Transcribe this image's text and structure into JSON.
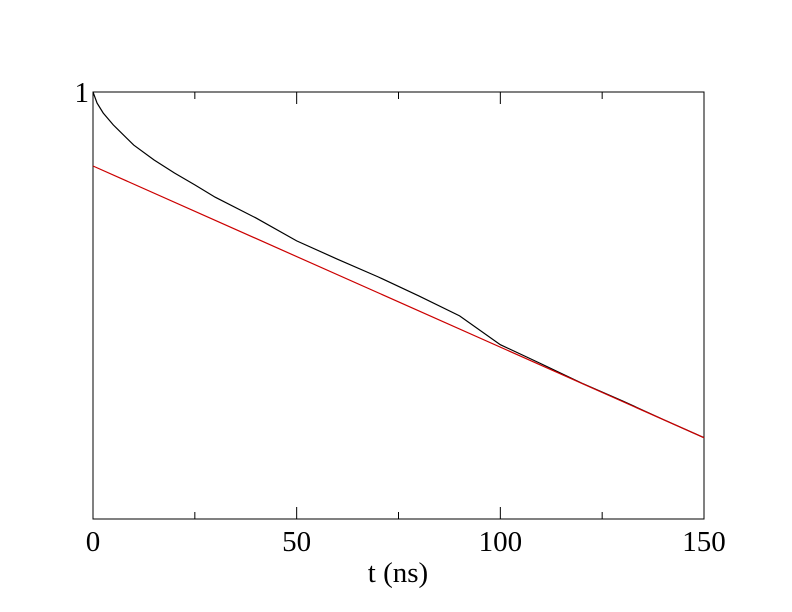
{
  "chart_data": {
    "type": "line",
    "x_label": "t (ns)",
    "xlim": [
      0,
      150
    ],
    "xticks": [
      0,
      50,
      100,
      150
    ],
    "xticks_minor": [
      25,
      75,
      125
    ],
    "ylim": [
      0.1,
      1
    ],
    "yticks": [
      1
    ],
    "y_log": true,
    "grid": false,
    "series": [
      {
        "color": "#000000",
        "x": [
          0,
          1,
          2.5,
          5,
          10,
          15,
          20,
          25,
          30,
          40,
          50,
          60,
          70,
          80,
          90,
          100,
          110,
          120,
          130,
          140,
          150
        ],
        "values": [
          1,
          0.942,
          0.893,
          0.837,
          0.751,
          0.693,
          0.646,
          0.606,
          0.567,
          0.507,
          0.448,
          0.406,
          0.369,
          0.333,
          0.299,
          0.256,
          0.231,
          0.208,
          0.189,
          0.171,
          0.155
        ]
      },
      {
        "color": "#cc0000",
        "x": [
          0,
          150
        ],
        "values": [
          0.671,
          0.155
        ]
      }
    ]
  }
}
